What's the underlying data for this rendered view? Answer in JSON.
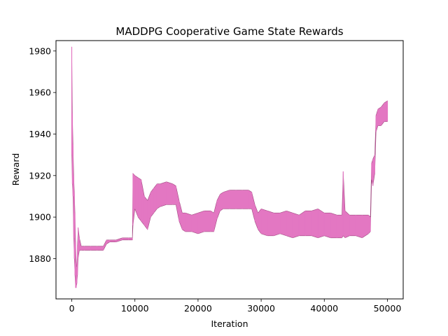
{
  "chart_data": {
    "type": "area",
    "title": "MADDPG Cooperative Game State Rewards",
    "xlabel": "Iteration",
    "ylabel": "Reward",
    "xlim": [
      -2500,
      52500
    ],
    "ylim": [
      1860.6,
      1985.0
    ],
    "xticks": [
      0,
      10000,
      20000,
      30000,
      40000,
      50000
    ],
    "yticks": [
      1880,
      1900,
      1920,
      1940,
      1960,
      1980
    ],
    "grid": false,
    "legend": "none",
    "series": [
      {
        "color": "#e377c2",
        "x": [
          0,
          100,
          200,
          300,
          400,
          500,
          600,
          700,
          800,
          900,
          1000,
          1200,
          1500,
          2000,
          3000,
          4000,
          5000,
          5500,
          6000,
          7000,
          8000,
          9000,
          9600,
          9700,
          10000,
          10500,
          11000,
          11500,
          12000,
          12500,
          13000,
          13500,
          14000,
          15000,
          16000,
          16500,
          17000,
          17500,
          18000,
          19000,
          20000,
          21000,
          22000,
          22500,
          23000,
          23500,
          24000,
          25000,
          26000,
          27000,
          28000,
          28500,
          29000,
          29500,
          30000,
          31000,
          32000,
          33000,
          34000,
          35000,
          36000,
          37000,
          38000,
          39000,
          40000,
          41000,
          42000,
          42800,
          43000,
          43300,
          44000,
          45000,
          46000,
          47000,
          47300,
          47500,
          47700,
          48000,
          48200,
          48500,
          49000,
          49500,
          50000
        ],
        "upper": [
          1982,
          1950,
          1935,
          1920,
          1912,
          1902,
          1888,
          1878,
          1876,
          1886,
          1895,
          1890,
          1886,
          1886,
          1886,
          1886,
          1886,
          1889,
          1889,
          1889,
          1890,
          1890,
          1890,
          1921,
          1920,
          1919,
          1918,
          1910,
          1908,
          1912,
          1914,
          1916,
          1916,
          1917,
          1916,
          1915,
          1908,
          1902,
          1902,
          1901,
          1902,
          1903,
          1903,
          1902,
          1908,
          1911,
          1912,
          1913,
          1913,
          1913,
          1913,
          1912,
          1906,
          1902,
          1904,
          1903,
          1902,
          1902,
          1903,
          1902,
          1901,
          1903,
          1903,
          1904,
          1902,
          1902,
          1901,
          1901,
          1922,
          1903,
          1901,
          1901,
          1901,
          1901,
          1900,
          1926,
          1928,
          1930,
          1949,
          1952,
          1953,
          1955,
          1956
        ],
        "lower": [
          1930,
          1916,
          1910,
          1890,
          1880,
          1872,
          1866,
          1866,
          1868,
          1872,
          1880,
          1884,
          1884,
          1884,
          1884,
          1884,
          1884,
          1887,
          1888,
          1888,
          1889,
          1889,
          1889,
          1896,
          1904,
          1900,
          1898,
          1896,
          1894,
          1900,
          1902,
          1904,
          1905,
          1906,
          1906,
          1906,
          1898,
          1894,
          1893,
          1893,
          1892,
          1893,
          1893,
          1893,
          1899,
          1903,
          1904,
          1904,
          1904,
          1904,
          1904,
          1904,
          1898,
          1894,
          1892,
          1891,
          1891,
          1892,
          1891,
          1890,
          1891,
          1891,
          1891,
          1890,
          1891,
          1890,
          1890,
          1890,
          1891,
          1890,
          1891,
          1891,
          1890,
          1892,
          1893,
          1918,
          1915,
          1921,
          1941,
          1944,
          1944,
          1946,
          1946
        ]
      }
    ]
  }
}
